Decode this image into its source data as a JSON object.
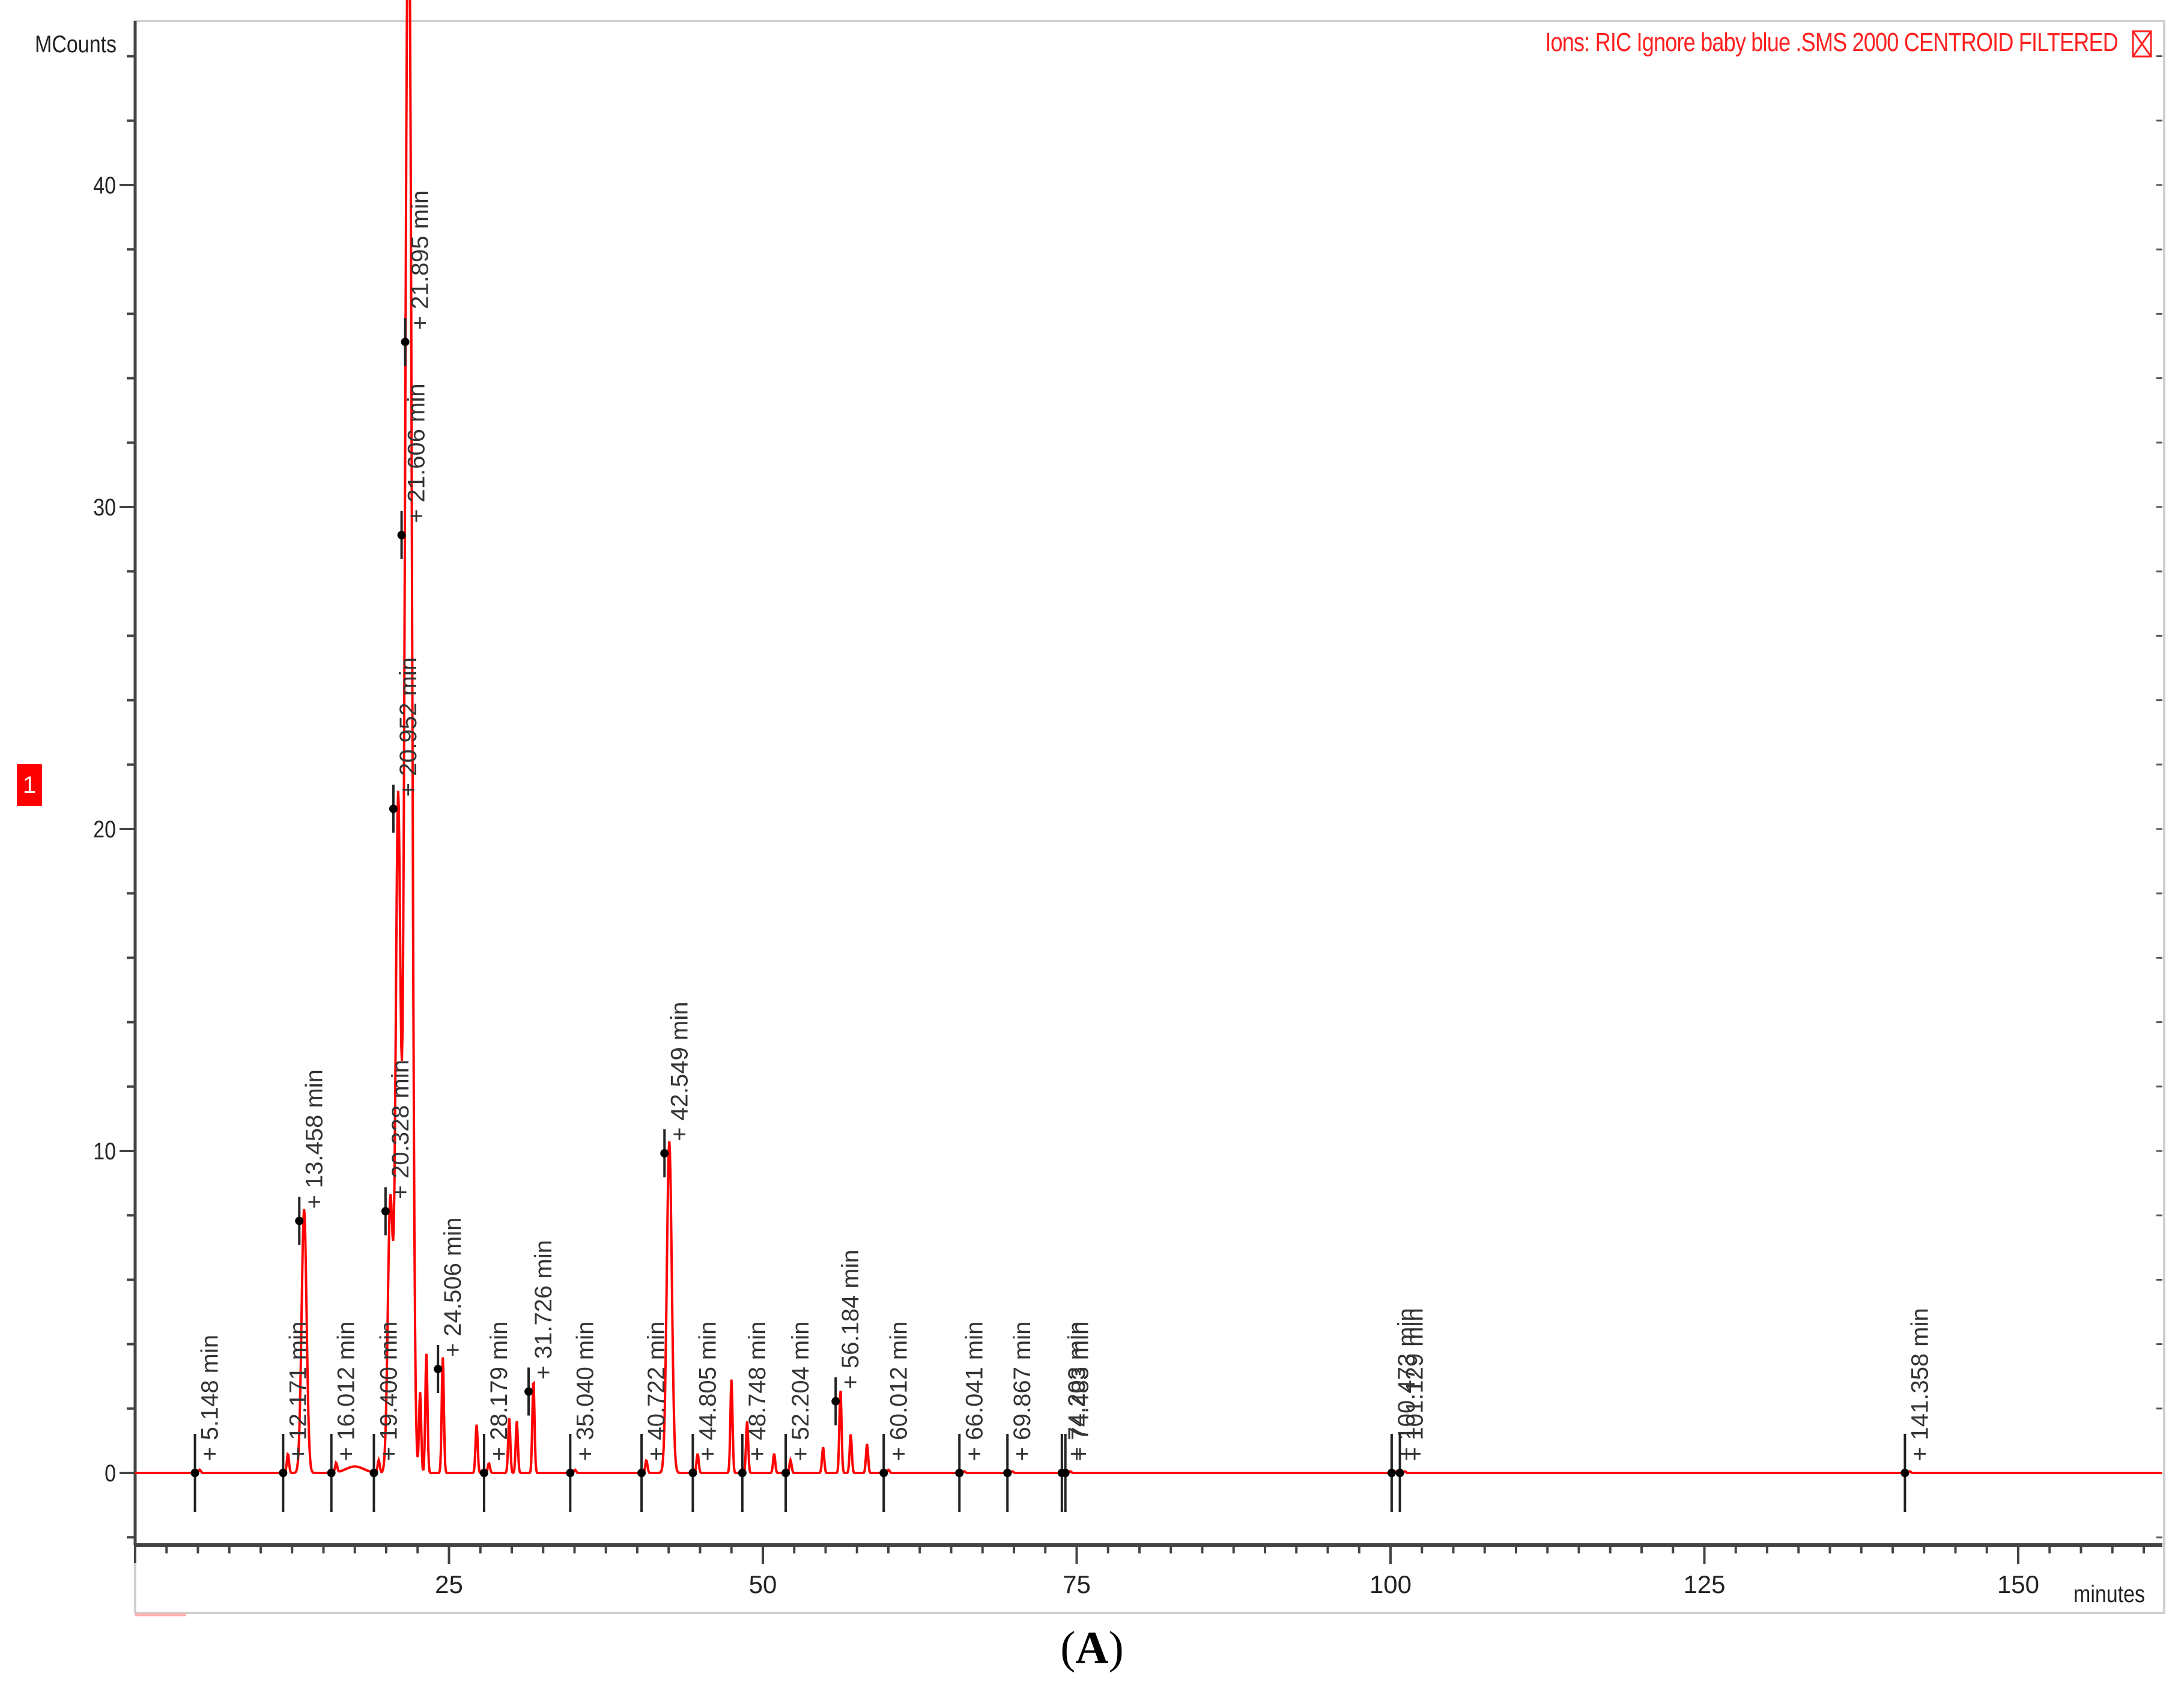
{
  "legend": {
    "text": "Ions: RIC Ignore baby blue .SMS 2000 CENTROID FILTERED",
    "close_icon": "close-x-box-icon",
    "color": "#ff2020"
  },
  "trace_badge": {
    "label": "1",
    "color": "#ff0000"
  },
  "caption": "A",
  "chart_data": {
    "type": "line",
    "title": "Ions: RIC Ignore baby blue .SMS 2000 CENTROID FILTERED",
    "xlabel": "minutes",
    "ylabel": "MCounts",
    "xlim": [
      0,
      161.5
    ],
    "ylim": [
      -2.2,
      45.5
    ],
    "x_ticks": [
      25,
      50,
      75,
      100,
      125,
      150
    ],
    "y_ticks": [
      0,
      10,
      20,
      30,
      40
    ],
    "x_minor_step": 2.5,
    "y_minor_step": 2,
    "grid": false,
    "legend_position": "top-right",
    "series_color": "#ff0000",
    "peaks": [
      {
        "rt": 5.148,
        "label": "5.148 min",
        "height": 0.1
      },
      {
        "rt": 12.171,
        "label": "12.171 min",
        "height": 0.6
      },
      {
        "rt": 13.458,
        "label": "13.458 min",
        "height": 8.2
      },
      {
        "rt": 16.012,
        "label": "16.012 min",
        "height": 0.3
      },
      {
        "rt": 19.4,
        "label": "19.400 min",
        "height": 0.4
      },
      {
        "rt": 20.328,
        "label": "20.328 min",
        "height": 8.5
      },
      {
        "rt": 20.952,
        "label": "20.952 min",
        "height": 21.0
      },
      {
        "rt": 21.606,
        "label": "21.606 min",
        "height": 29.5
      },
      {
        "rt": 21.895,
        "label": "21.895 min",
        "height": 35.5
      },
      {
        "rt": 24.506,
        "label": "24.506 min",
        "height": 3.6
      },
      {
        "rt": 28.179,
        "label": "28.179 min",
        "height": 0.3
      },
      {
        "rt": 31.726,
        "label": "31.726 min",
        "height": 2.9
      },
      {
        "rt": 35.04,
        "label": "35.040 min",
        "height": 0.1
      },
      {
        "rt": 40.722,
        "label": "40.722 min",
        "height": 0.4
      },
      {
        "rt": 42.549,
        "label": "42.549 min",
        "height": 10.3
      },
      {
        "rt": 44.805,
        "label": "44.805 min",
        "height": 0.6
      },
      {
        "rt": 48.748,
        "label": "48.748 min",
        "height": 1.6
      },
      {
        "rt": 52.204,
        "label": "52.204 min",
        "height": 0.4
      },
      {
        "rt": 56.184,
        "label": "56.184 min",
        "height": 2.6
      },
      {
        "rt": 60.012,
        "label": "60.012 min",
        "height": 0.1
      },
      {
        "rt": 66.041,
        "label": "66.041 min",
        "height": 0.05
      },
      {
        "rt": 69.867,
        "label": "69.867 min",
        "height": 0.05
      },
      {
        "rt": 74.203,
        "label": "74.203 min",
        "height": 0.05
      },
      {
        "rt": 74.483,
        "label": "74.483 min",
        "height": 0.05
      },
      {
        "rt": 100.473,
        "label": "100.473 min",
        "height": 0.05
      },
      {
        "rt": 101.129,
        "label": "101.129 min",
        "height": 0.05
      },
      {
        "rt": 141.358,
        "label": "141.358 min",
        "height": 0.05
      }
    ],
    "unlabeled_peaks": [
      {
        "rt": 22.7,
        "height": 2.5
      },
      {
        "rt": 23.2,
        "height": 3.7
      },
      {
        "rt": 27.2,
        "height": 1.5
      },
      {
        "rt": 29.8,
        "height": 1.7
      },
      {
        "rt": 30.4,
        "height": 1.6
      },
      {
        "rt": 47.5,
        "height": 2.9
      },
      {
        "rt": 50.9,
        "height": 0.6
      },
      {
        "rt": 54.8,
        "height": 0.8
      },
      {
        "rt": 57.0,
        "height": 1.2
      },
      {
        "rt": 58.3,
        "height": 0.9
      }
    ]
  }
}
